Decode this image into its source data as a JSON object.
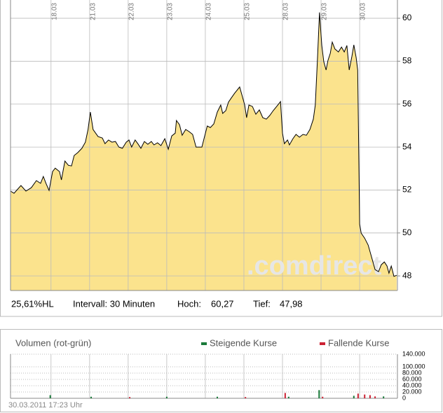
{
  "chart_data": [
    {
      "type": "area",
      "watermark": ".comdirect",
      "x": [
        -1.05,
        -0.96,
        -0.78,
        -0.65,
        -0.51,
        -0.38,
        -0.27,
        -0.2,
        -0.13,
        -0.05,
        0.04,
        0.11,
        0.22,
        0.27,
        0.36,
        0.45,
        0.53,
        0.6,
        0.69,
        0.8,
        0.89,
        0.96,
        1.02,
        1.09,
        1.22,
        1.33,
        1.4,
        1.49,
        1.58,
        1.67,
        1.76,
        1.85,
        1.95,
        2.02,
        2.09,
        2.18,
        2.25,
        2.33,
        2.42,
        2.51,
        2.6,
        2.67,
        2.76,
        2.85,
        2.95,
        3.04,
        3.13,
        3.22,
        3.25,
        3.33,
        3.4,
        3.49,
        3.58,
        3.67,
        3.76,
        3.91,
        3.98,
        4.05,
        4.13,
        4.22,
        4.31,
        4.4,
        4.45,
        4.53,
        4.6,
        4.67,
        4.76,
        4.85,
        4.89,
        4.96,
        5.02,
        5.07,
        5.13,
        5.22,
        5.31,
        5.4,
        5.49,
        5.58,
        5.67,
        5.76,
        5.85,
        5.95,
        6.0,
        6.05,
        6.13,
        6.18,
        6.27,
        6.35,
        6.44,
        6.53,
        6.62,
        6.71,
        6.8,
        6.85,
        6.91,
        6.96,
        7.02,
        7.07,
        7.13,
        7.18,
        7.24,
        7.29,
        7.36,
        7.45,
        7.53,
        7.6,
        7.67,
        7.73,
        7.8,
        7.85,
        7.91,
        7.95,
        8.0,
        8.04,
        8.13,
        8.22,
        8.31,
        8.4,
        8.49,
        8.56,
        8.64,
        8.71,
        8.76,
        8.82,
        8.89,
        8.96
      ],
      "y": [
        51.95,
        51.85,
        52.21,
        51.95,
        52.11,
        52.44,
        52.31,
        52.63,
        52.31,
        51.98,
        52.86,
        53.02,
        52.86,
        52.47,
        53.35,
        53.15,
        53.12,
        53.61,
        53.74,
        53.94,
        54.23,
        54.82,
        55.63,
        54.82,
        54.49,
        54.42,
        54.16,
        54.33,
        54.23,
        54.26,
        54.0,
        53.94,
        54.23,
        54.33,
        54.0,
        54.33,
        54.16,
        53.94,
        54.26,
        54.13,
        54.26,
        54.1,
        54.2,
        54.07,
        54.39,
        53.9,
        54.52,
        54.65,
        55.24,
        55.04,
        54.55,
        54.82,
        54.72,
        54.59,
        54.0,
        54.0,
        54.49,
        54.98,
        54.91,
        55.08,
        55.63,
        55.96,
        55.57,
        55.7,
        56.09,
        56.28,
        56.51,
        56.71,
        56.8,
        56.35,
        55.96,
        55.37,
        55.96,
        55.89,
        55.53,
        55.73,
        55.37,
        55.3,
        55.47,
        55.7,
        55.89,
        56.12,
        54.65,
        54.16,
        54.33,
        54.1,
        54.39,
        54.59,
        54.46,
        54.59,
        54.55,
        54.82,
        55.3,
        55.96,
        58.24,
        60.27,
        58.73,
        57.98,
        57.59,
        58.04,
        58.37,
        58.89,
        58.57,
        58.43,
        58.66,
        58.43,
        58.73,
        57.59,
        58.24,
        58.76,
        58.17,
        57.59,
        50.41,
        49.99,
        49.76,
        49.44,
        48.88,
        48.29,
        48.2,
        48.52,
        48.65,
        48.46,
        48.13,
        48.46,
        47.98,
        48.03
      ],
      "color": "#fbe38d",
      "line_color": "#000000",
      "xlim": [
        -1.05,
        8.98
      ],
      "ylim": [
        47.32,
        60.85
      ],
      "xticks": [
        {
          "value": 0,
          "label": "18.03"
        },
        {
          "value": 1,
          "label": "21.03"
        },
        {
          "value": 2,
          "label": "22.03"
        },
        {
          "value": 3,
          "label": "23.03"
        },
        {
          "value": 4,
          "label": "24.03"
        },
        {
          "value": 5,
          "label": "25.03"
        },
        {
          "value": 6,
          "label": "28.03"
        },
        {
          "value": 7,
          "label": "29.03"
        },
        {
          "value": 8,
          "label": "30.03"
        }
      ],
      "yticks": [
        48,
        50,
        52,
        54,
        56,
        58,
        60
      ],
      "grid": true,
      "stats": {
        "range": "25,61%HL",
        "interval": "Intervall: 30 Minuten",
        "high_label": "Hoch:",
        "high": "60,27",
        "low_label": "Tief:",
        "low": "47,98"
      }
    },
    {
      "type": "bar",
      "title": "Volumen (rot-grün)",
      "timestamp": "30.03.2011 17:23 Uhr",
      "xlim": [
        -1.05,
        8.98
      ],
      "ylim": [
        0,
        140000
      ],
      "yticks": [
        0,
        {
          "value": 20000,
          "label": "20.000"
        },
        {
          "value": 40000,
          "label": "40.000"
        },
        {
          "value": 60000,
          "label": "60.000"
        },
        {
          "value": 80000,
          "label": "80.000"
        },
        {
          "value": 100000,
          "label": "100.000"
        },
        {
          "value": 140000,
          "label": "140.000"
        }
      ],
      "series": [
        {
          "name": "Steigende Kurse",
          "color": "#1a7a3a",
          "x": [
            -0.02,
            1.04,
            3.0,
            4.31,
            6.16,
            6.95,
            7.85,
            8.62
          ],
          "values": [
            10000,
            5000,
            5000,
            5000,
            5000,
            26000,
            8000,
            6000
          ]
        },
        {
          "name": "Fallende Kurse",
          "color": "#cc2233",
          "x": [
            2.04,
            5.04,
            6.07,
            7.04,
            7.96,
            8.13,
            8.27,
            8.4
          ],
          "values": [
            4000,
            4000,
            17000,
            5000,
            15000,
            12000,
            10000,
            6000
          ]
        }
      ]
    }
  ]
}
